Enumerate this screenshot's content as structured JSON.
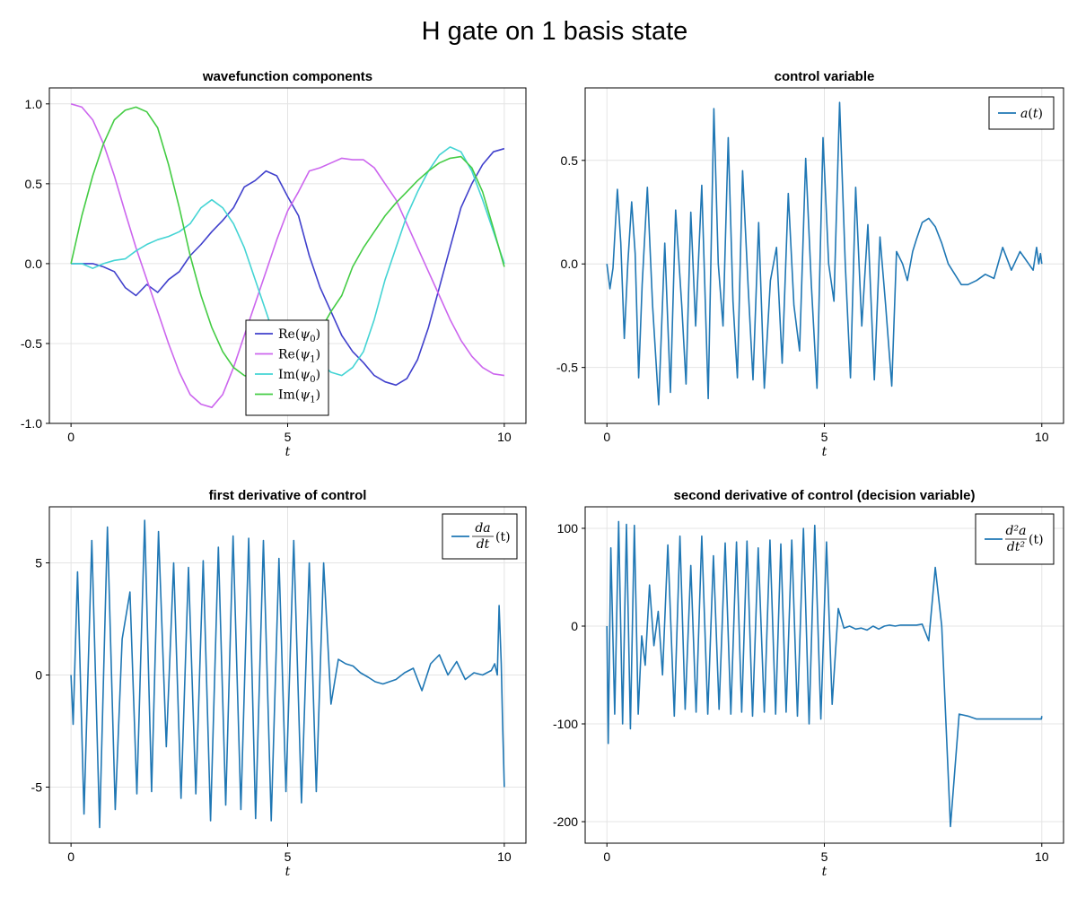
{
  "figure": {
    "title": "H gate on 1 basis state"
  },
  "chart_data": [
    {
      "type": "line",
      "title": "wavefunction components",
      "xlabel": "t",
      "ylabel": "",
      "xlim": [
        -0.5,
        10.5
      ],
      "ylim": [
        -1.0,
        1.1
      ],
      "xticks": [
        0,
        5,
        10
      ],
      "xtick_labels": [
        "0",
        "5",
        "10"
      ],
      "yticks": [
        -1.0,
        -0.5,
        0.0,
        0.5,
        1.0
      ],
      "ytick_labels": [
        "-1.0",
        "-0.5",
        "0.0",
        "0.5",
        "1.0"
      ],
      "grid": true,
      "legend_position": "bottom-center",
      "x": [
        0,
        0.25,
        0.5,
        0.75,
        1,
        1.25,
        1.5,
        1.75,
        2,
        2.25,
        2.5,
        2.75,
        3,
        3.25,
        3.5,
        3.75,
        4,
        4.25,
        4.5,
        4.75,
        5,
        5.25,
        5.5,
        5.75,
        6,
        6.25,
        6.5,
        6.75,
        7,
        7.25,
        7.5,
        7.75,
        8,
        8.25,
        8.5,
        8.75,
        9,
        9.25,
        9.5,
        9.75,
        10
      ],
      "series": [
        {
          "name": "Re(ψ₀)",
          "name_main": "Re",
          "name_arg": "ψ",
          "name_sub": "0",
          "color": "#4040cc",
          "values": [
            0,
            0.0,
            0.0,
            -0.02,
            -0.05,
            -0.15,
            -0.2,
            -0.13,
            -0.18,
            -0.1,
            -0.05,
            0.05,
            0.12,
            0.2,
            0.27,
            0.35,
            0.48,
            0.52,
            0.58,
            0.55,
            0.42,
            0.3,
            0.05,
            -0.15,
            -0.3,
            -0.45,
            -0.55,
            -0.62,
            -0.7,
            -0.74,
            -0.76,
            -0.72,
            -0.6,
            -0.4,
            -0.15,
            0.1,
            0.35,
            0.5,
            0.62,
            0.7,
            0.72
          ]
        },
        {
          "name": "Re(ψ₁)",
          "name_main": "Re",
          "name_arg": "ψ",
          "name_sub": "1",
          "color": "#cc66ee",
          "values": [
            1.0,
            0.98,
            0.9,
            0.75,
            0.55,
            0.32,
            0.1,
            -0.1,
            -0.3,
            -0.5,
            -0.68,
            -0.82,
            -0.88,
            -0.9,
            -0.82,
            -0.65,
            -0.45,
            -0.25,
            -0.05,
            0.15,
            0.33,
            0.45,
            0.58,
            0.6,
            0.63,
            0.66,
            0.65,
            0.65,
            0.6,
            0.5,
            0.4,
            0.25,
            0.1,
            -0.05,
            -0.2,
            -0.35,
            -0.48,
            -0.58,
            -0.65,
            -0.69,
            -0.7
          ]
        },
        {
          "name": "Im(ψ₀)",
          "name_main": "Im",
          "name_arg": "ψ",
          "name_sub": "0",
          "color": "#44d4d4",
          "values": [
            0,
            0.0,
            -0.03,
            0.0,
            0.02,
            0.03,
            0.08,
            0.12,
            0.15,
            0.17,
            0.2,
            0.25,
            0.35,
            0.4,
            0.35,
            0.25,
            0.1,
            -0.1,
            -0.3,
            -0.5,
            -0.65,
            -0.72,
            -0.7,
            -0.62,
            -0.68,
            -0.7,
            -0.65,
            -0.55,
            -0.35,
            -0.1,
            0.1,
            0.3,
            0.45,
            0.58,
            0.68,
            0.73,
            0.7,
            0.58,
            0.4,
            0.2,
            0.0
          ]
        },
        {
          "name": "Im(ψ₁)",
          "name_main": "Im",
          "name_arg": "ψ",
          "name_sub": "1",
          "color": "#44cc44",
          "values": [
            0,
            0.3,
            0.55,
            0.75,
            0.9,
            0.96,
            0.98,
            0.95,
            0.85,
            0.62,
            0.35,
            0.05,
            -0.2,
            -0.4,
            -0.55,
            -0.65,
            -0.7,
            -0.72,
            -0.7,
            -0.67,
            -0.7,
            -0.68,
            -0.55,
            -0.42,
            -0.3,
            -0.2,
            -0.02,
            0.1,
            0.2,
            0.3,
            0.38,
            0.45,
            0.52,
            0.58,
            0.63,
            0.66,
            0.67,
            0.6,
            0.45,
            0.22,
            -0.02
          ]
        }
      ]
    },
    {
      "type": "line",
      "title": "control variable",
      "xlabel": "t",
      "ylabel": "",
      "xlim": [
        -0.5,
        10.5
      ],
      "ylim": [
        -0.77,
        0.85
      ],
      "xticks": [
        0,
        5,
        10
      ],
      "xtick_labels": [
        "0",
        "5",
        "10"
      ],
      "yticks": [
        -0.5,
        0.0,
        0.5
      ],
      "ytick_labels": [
        "-0.5",
        "0.0",
        "0.5"
      ],
      "grid": true,
      "legend_position": "top-right",
      "series": [
        {
          "name": "a(t)",
          "name_fn": "a",
          "color": "#1f77b4",
          "t": [
            0,
            0.07,
            0.14,
            0.24,
            0.32,
            0.4,
            0.48,
            0.57,
            0.65,
            0.73,
            0.81,
            0.93,
            1.05,
            1.19,
            1.33,
            1.46,
            1.58,
            1.72,
            1.82,
            1.93,
            2.04,
            2.18,
            2.33,
            2.46,
            2.56,
            2.67,
            2.79,
            2.9,
            3.0,
            3.12,
            3.25,
            3.36,
            3.49,
            3.62,
            3.76,
            3.9,
            4.03,
            4.17,
            4.3,
            4.43,
            4.57,
            4.7,
            4.83,
            4.97,
            5.1,
            5.22,
            5.35,
            5.48,
            5.6,
            5.72,
            5.86,
            6.0,
            6.15,
            6.28,
            6.41,
            6.55,
            6.66,
            6.8,
            6.91,
            7.03,
            7.12,
            7.25,
            7.4,
            7.55,
            7.7,
            7.85,
            8.0,
            8.15,
            8.3,
            8.5,
            8.7,
            8.9,
            9.1,
            9.3,
            9.5,
            9.7,
            9.8,
            9.88,
            9.93,
            9.97,
            10.0
          ],
          "values": [
            0,
            -0.12,
            -0.02,
            0.36,
            0.1,
            -0.36,
            0.0,
            0.3,
            0.05,
            -0.55,
            -0.1,
            0.37,
            -0.2,
            -0.68,
            0.1,
            -0.62,
            0.26,
            -0.2,
            -0.58,
            0.25,
            -0.3,
            0.38,
            -0.65,
            0.75,
            0.0,
            -0.3,
            0.61,
            -0.18,
            -0.55,
            0.45,
            -0.12,
            -0.56,
            0.2,
            -0.6,
            -0.08,
            0.08,
            -0.48,
            0.34,
            -0.2,
            -0.42,
            0.51,
            -0.1,
            -0.6,
            0.61,
            0.0,
            -0.18,
            0.78,
            0.0,
            -0.55,
            0.37,
            -0.3,
            0.19,
            -0.56,
            0.13,
            -0.2,
            -0.59,
            0.06,
            0.0,
            -0.08,
            0.06,
            0.12,
            0.2,
            0.22,
            0.18,
            0.1,
            0.0,
            -0.05,
            -0.1,
            -0.1,
            -0.08,
            -0.05,
            -0.07,
            0.08,
            -0.03,
            0.06,
            0.0,
            -0.03,
            0.08,
            0.0,
            0.05,
            0.0
          ]
        }
      ]
    },
    {
      "type": "line",
      "title": "first derivative of control",
      "xlabel": "t",
      "ylabel": "",
      "xlim": [
        -0.5,
        10.5
      ],
      "ylim": [
        -7.5,
        7.5
      ],
      "xticks": [
        0,
        5,
        10
      ],
      "xtick_labels": [
        "0",
        "5",
        "10"
      ],
      "yticks": [
        -5,
        0,
        5
      ],
      "ytick_labels": [
        "-5",
        "0",
        "5"
      ],
      "grid": true,
      "legend_position": "top-right",
      "series": [
        {
          "name": "da/dt(t)",
          "name_num": "da",
          "name_den": "dt",
          "name_suffix": "(t)",
          "color": "#1f77b4",
          "t": [
            0,
            0.05,
            0.15,
            0.3,
            0.48,
            0.66,
            0.84,
            1.02,
            1.18,
            1.36,
            1.52,
            1.7,
            1.86,
            2.02,
            2.2,
            2.37,
            2.54,
            2.71,
            2.88,
            3.05,
            3.22,
            3.4,
            3.57,
            3.74,
            3.92,
            4.1,
            4.26,
            4.44,
            4.62,
            4.8,
            4.96,
            5.14,
            5.32,
            5.5,
            5.66,
            5.83,
            6.0,
            6.17,
            6.34,
            6.51,
            6.68,
            6.86,
            7.02,
            7.2,
            7.35,
            7.5,
            7.7,
            7.9,
            8.1,
            8.3,
            8.5,
            8.7,
            8.9,
            9.1,
            9.3,
            9.5,
            9.7,
            9.78,
            9.84,
            9.88,
            9.93,
            9.96,
            10.0
          ],
          "values": [
            0,
            -2.2,
            4.6,
            -6.2,
            6.0,
            -6.8,
            6.6,
            -6.0,
            1.6,
            3.7,
            -5.3,
            6.9,
            -5.2,
            6.4,
            -3.2,
            5.0,
            -5.5,
            4.8,
            -5.3,
            5.1,
            -6.5,
            5.7,
            -5.8,
            6.2,
            -6.0,
            6.1,
            -6.4,
            6.0,
            -6.5,
            5.2,
            -5.2,
            6.0,
            -5.7,
            5.0,
            -5.2,
            5.0,
            -1.3,
            0.7,
            0.5,
            0.4,
            0.1,
            -0.1,
            -0.3,
            -0.4,
            -0.3,
            -0.2,
            0.1,
            0.3,
            -0.7,
            0.5,
            0.9,
            0.0,
            0.6,
            -0.2,
            0.1,
            0.0,
            0.2,
            0.5,
            0.0,
            3.1,
            0.5,
            -2.0,
            -5.0
          ]
        }
      ]
    },
    {
      "type": "line",
      "title": "second derivative of control (decision variable)",
      "xlabel": "t",
      "ylabel": "",
      "xlim": [
        -0.5,
        10.5
      ],
      "ylim": [
        -222,
        122
      ],
      "xticks": [
        0,
        5,
        10
      ],
      "xtick_labels": [
        "0",
        "5",
        "10"
      ],
      "yticks": [
        -200,
        -100,
        0,
        100
      ],
      "ytick_labels": [
        "-200",
        "-100",
        "0",
        "100"
      ],
      "grid": true,
      "legend_position": "top-right",
      "series": [
        {
          "name": "d²a/dt²(t)",
          "name_num": "d²a",
          "name_den": "dt²",
          "name_suffix": "(t)",
          "color": "#1f77b4",
          "t": [
            0,
            0.03,
            0.09,
            0.18,
            0.27,
            0.36,
            0.45,
            0.54,
            0.63,
            0.72,
            0.8,
            0.88,
            0.98,
            1.08,
            1.18,
            1.28,
            1.4,
            1.55,
            1.68,
            1.8,
            1.93,
            2.05,
            2.18,
            2.32,
            2.45,
            2.58,
            2.72,
            2.85,
            2.98,
            3.1,
            3.22,
            3.35,
            3.48,
            3.62,
            3.75,
            3.88,
            4.0,
            4.12,
            4.25,
            4.38,
            4.52,
            4.65,
            4.78,
            4.92,
            5.05,
            5.18,
            5.32,
            5.45,
            5.58,
            5.72,
            5.85,
            5.98,
            6.12,
            6.25,
            6.38,
            6.5,
            6.63,
            6.75,
            6.88,
            7.0,
            7.12,
            7.25,
            7.4,
            7.55,
            7.7,
            7.9,
            8.1,
            8.3,
            8.5,
            8.7,
            8.9,
            9.1,
            9.3,
            9.5,
            9.7,
            9.82,
            9.9,
            9.96,
            9.99,
            10.0
          ],
          "values": [
            0,
            -120,
            80,
            -90,
            107,
            -100,
            104,
            -105,
            103,
            -90,
            -10,
            -40,
            42,
            -20,
            15,
            -50,
            83,
            -92,
            92,
            -85,
            62,
            -88,
            92,
            -90,
            72,
            -85,
            85,
            -90,
            86,
            -88,
            87,
            -92,
            80,
            -88,
            88,
            -90,
            84,
            -88,
            88,
            -92,
            100,
            -100,
            103,
            -95,
            86,
            -80,
            18,
            -2,
            0,
            -3,
            -2,
            -4,
            0,
            -3,
            0,
            1,
            0,
            1,
            1,
            1,
            1,
            2,
            -15,
            60,
            0,
            -205,
            -90,
            -92,
            -95,
            -95,
            -95,
            -95,
            -95,
            -95,
            -95,
            -95,
            -95,
            -95,
            -95,
            -92
          ]
        }
      ]
    }
  ]
}
